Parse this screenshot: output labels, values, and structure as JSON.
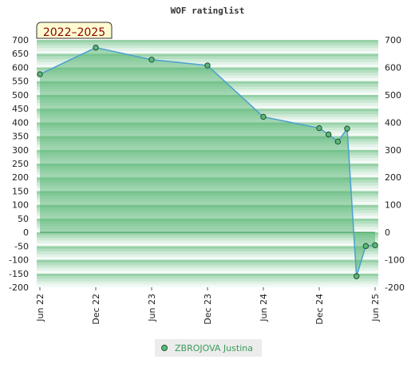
{
  "chart_data": {
    "type": "area",
    "title": "WOF ratinglist",
    "badge": "2022–2025",
    "xlabel": "",
    "ylabel": "",
    "ylim": [
      -200,
      700
    ],
    "y_ticks": [
      -200,
      -150,
      -100,
      -50,
      0,
      50,
      100,
      150,
      200,
      250,
      300,
      350,
      400,
      450,
      500,
      550,
      600,
      650,
      700
    ],
    "y_ticks_right": [
      -200,
      -100,
      0,
      100,
      200,
      300,
      400,
      500,
      600,
      700
    ],
    "x_ticks": [
      "Jun 22",
      "Dec 22",
      "Jun 23",
      "Dec 23",
      "Jun 24",
      "Dec 24",
      "Jun 25"
    ],
    "series": [
      {
        "name": "ZBROJOVA Justina",
        "color": "#3a9a5a",
        "points": [
          {
            "x": "2022-06",
            "y": 575
          },
          {
            "x": "2022-12",
            "y": 672
          },
          {
            "x": "2023-06",
            "y": 628
          },
          {
            "x": "2023-12",
            "y": 607
          },
          {
            "x": "2024-06",
            "y": 420
          },
          {
            "x": "2024-12",
            "y": 379
          },
          {
            "x": "2025-01",
            "y": 356
          },
          {
            "x": "2025-02",
            "y": 330
          },
          {
            "x": "2025-03",
            "y": 377
          },
          {
            "x": "2025-04",
            "y": -160
          },
          {
            "x": "2025-05",
            "y": -50
          },
          {
            "x": "2025-06",
            "y": -47
          }
        ]
      }
    ],
    "colors": {
      "fill": "#5cb878",
      "line": "#4a9fd0",
      "band_dark": "#7cc694",
      "band_light": "#f4faf5"
    },
    "legend": "bottom-center",
    "grid": false
  }
}
